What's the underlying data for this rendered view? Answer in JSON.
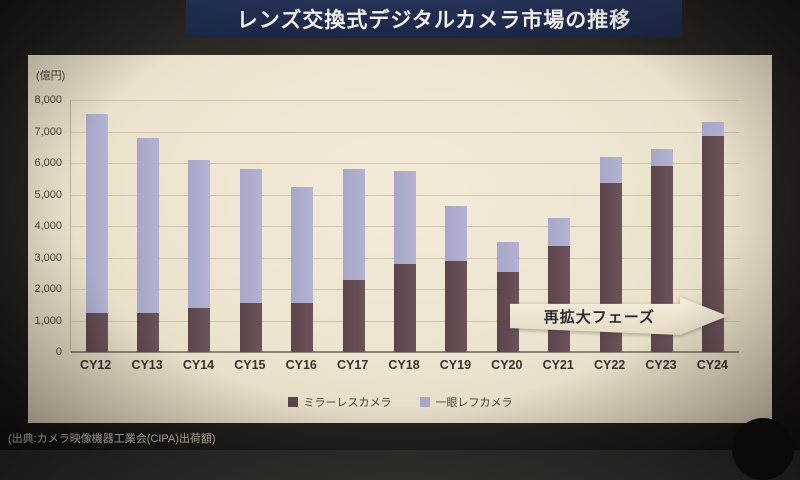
{
  "title": "レンズ交換式デジタルカメラ市場の推移",
  "source": "(出典:カメラ映像機器工業会(CIPA)出荷額)",
  "chart_data": {
    "type": "bar",
    "stacked": true,
    "title": "レンズ交換式デジタルカメラ市場の推移",
    "unit_label": "(億円)",
    "categories": [
      "CY12",
      "CY13",
      "CY14",
      "CY15",
      "CY16",
      "CY17",
      "CY18",
      "CY19",
      "CY20",
      "CY21",
      "CY22",
      "CY23",
      "CY24"
    ],
    "series": [
      {
        "name": "ミラーレスカメラ",
        "color": "#5a454b",
        "values": [
          1250,
          1250,
          1400,
          1550,
          1550,
          2300,
          2800,
          2900,
          2550,
          3350,
          5350,
          5900,
          6850
        ]
      },
      {
        "name": "一眼レフカメラ",
        "color": "#a6a6c8",
        "values": [
          6300,
          5550,
          4700,
          4250,
          3700,
          3500,
          2950,
          1750,
          950,
          900,
          850,
          550,
          450
        ]
      }
    ],
    "ylim": [
      0,
      8000
    ],
    "ytick_step": 1000,
    "ytick_labels": [
      "0",
      "1,000",
      "2,000",
      "3,000",
      "4,000",
      "5,000",
      "6,000",
      "7,000",
      "8,000"
    ],
    "grid": true,
    "legend_position": "bottom",
    "annotation": "再拡大フェーズ"
  }
}
